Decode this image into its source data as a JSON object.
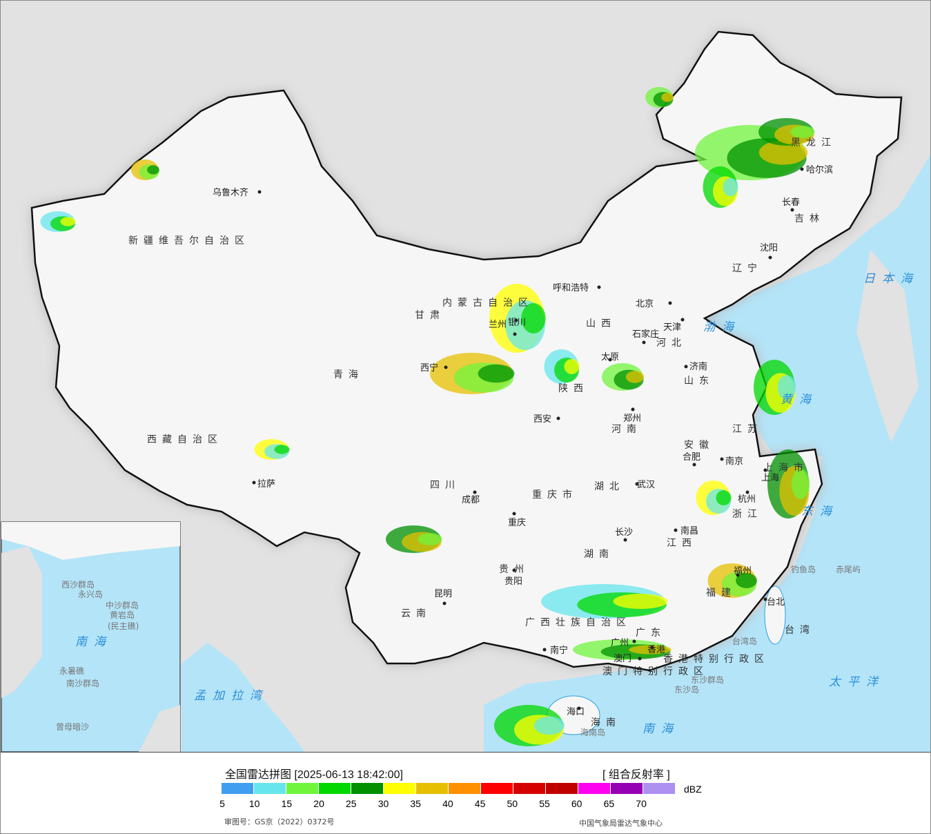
{
  "header": {
    "title": "全国雷达拼图 [2025-06-13 18:42:00]",
    "product": "[ 组合反射率 ]"
  },
  "legend": {
    "unit": "dBZ",
    "ticks": [
      "5",
      "10",
      "15",
      "20",
      "25",
      "30",
      "35",
      "40",
      "45",
      "50",
      "55",
      "60",
      "65",
      "70"
    ],
    "colors": [
      "#409ef0",
      "#66e6ec",
      "#70f43c",
      "#00d800",
      "#009000",
      "#ffff00",
      "#e6c000",
      "#ff9000",
      "#ff0000",
      "#d60000",
      "#c00000",
      "#ff00f0",
      "#9600b4",
      "#ad90f0"
    ]
  },
  "footer": {
    "approval": "审图号：GS京（2022）0372号",
    "agency": "中国气象局雷达气象中心"
  },
  "map_colors": {
    "sea": "#b4e4f8",
    "land_outside": "#e2e2e2",
    "china_land": "#f6f6f6",
    "border": "#111111"
  },
  "labels": {
    "provinces": [
      "新疆维吾尔自治区",
      "西藏自治区",
      "青海",
      "甘肃",
      "内蒙古自治区",
      "黑龙江",
      "吉林",
      "辽宁",
      "河北",
      "山西",
      "陕西",
      "山东",
      "河南",
      "江苏",
      "安徽",
      "湖北",
      "四川",
      "重庆市",
      "贵州",
      "云南",
      "湖南",
      "江西",
      "浙江",
      "福建",
      "广西壮族自治区",
      "广东",
      "海南",
      "台湾",
      "上海市",
      "香港特别行政区",
      "澳门特别行政区"
    ],
    "cities": [
      "乌鲁木齐",
      "拉萨",
      "西宁",
      "兰州",
      "银川",
      "呼和浩特",
      "北京",
      "天津",
      "石家庄",
      "太原",
      "济南",
      "郑州",
      "西安",
      "沈阳",
      "长春",
      "哈尔滨",
      "南京",
      "合肥",
      "上海",
      "杭州",
      "武汉",
      "成都",
      "重庆",
      "长沙",
      "南昌",
      "贵阳",
      "昆明",
      "福州",
      "南宁",
      "广州",
      "澳门",
      "香港",
      "台北",
      "海口"
    ],
    "seas": [
      "日本海",
      "渤海",
      "黄海",
      "东海",
      "南海",
      "太平洋",
      "孟加拉湾"
    ],
    "islands": [
      "钓鱼岛",
      "赤尾屿",
      "台湾岛",
      "东沙群岛",
      "东沙岛",
      "海南岛"
    ],
    "inset": [
      "西沙群岛",
      "永兴岛",
      "中沙群岛",
      "黄岩岛",
      "(民主礁)",
      "南海",
      "永暑礁",
      "南沙群岛",
      "曾母暗沙"
    ]
  }
}
